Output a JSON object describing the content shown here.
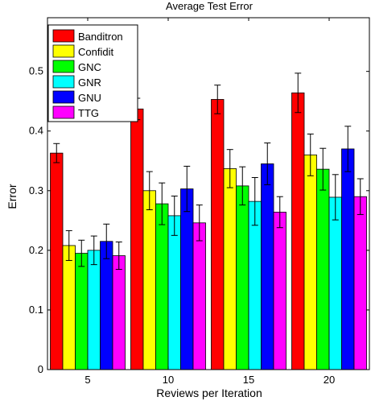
{
  "chart_data": {
    "type": "bar",
    "title": "Average Test Error",
    "xlabel": "Reviews per Iteration",
    "ylabel": "Error",
    "categories": [
      "5",
      "10",
      "15",
      "20"
    ],
    "ylim": [
      0,
      0.59
    ],
    "yticks": [
      0,
      0.1,
      0.2,
      0.3,
      0.4,
      0.5
    ],
    "ytick_labels": [
      "0",
      "0.1",
      "0.2",
      "0.3",
      "0.4",
      "0.5"
    ],
    "error_bars": true,
    "grid": false,
    "legend_position": "top-left",
    "series": [
      {
        "name": "Banditron",
        "color": "#ff0000",
        "values": [
          0.363,
          0.437,
          0.453,
          0.464
        ],
        "errors": [
          0.016,
          0.018,
          0.024,
          0.033
        ]
      },
      {
        "name": "Confidit",
        "color": "#ffff00",
        "values": [
          0.208,
          0.3,
          0.337,
          0.36
        ],
        "errors": [
          0.025,
          0.032,
          0.032,
          0.035
        ]
      },
      {
        "name": "GNC",
        "color": "#00ff00",
        "values": [
          0.195,
          0.278,
          0.308,
          0.336
        ],
        "errors": [
          0.022,
          0.035,
          0.032,
          0.035
        ]
      },
      {
        "name": "GNR",
        "color": "#00ffff",
        "values": [
          0.2,
          0.258,
          0.282,
          0.289
        ],
        "errors": [
          0.024,
          0.033,
          0.04,
          0.038
        ]
      },
      {
        "name": "GNU",
        "color": "#0000ff",
        "values": [
          0.215,
          0.303,
          0.345,
          0.37
        ],
        "errors": [
          0.029,
          0.038,
          0.035,
          0.038
        ]
      },
      {
        "name": "TTG",
        "color": "#ff00ff",
        "values": [
          0.191,
          0.246,
          0.264,
          0.29
        ],
        "errors": [
          0.023,
          0.03,
          0.026,
          0.03
        ]
      }
    ]
  }
}
